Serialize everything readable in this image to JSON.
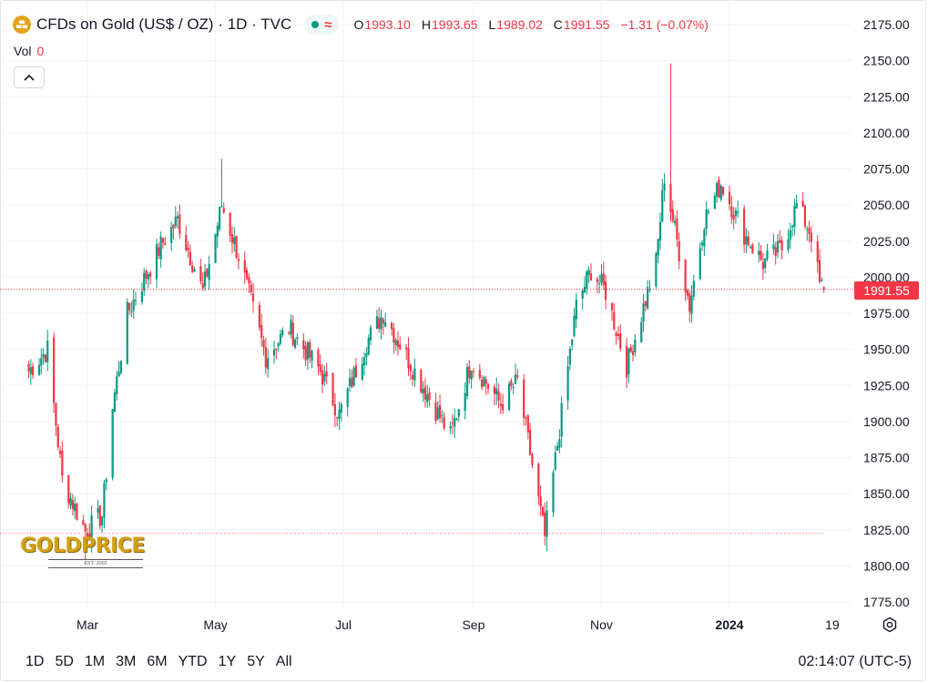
{
  "header": {
    "symbol_title": "CFDs on Gold (US$ / OZ) · 1D · TVC",
    "logo_icon": "gold-bars-icon",
    "status_icons": [
      "market-open-dot-icon",
      "delayed-data-wave-icon"
    ],
    "ohlc": [
      {
        "key": "O",
        "value": "1993.10"
      },
      {
        "key": "H",
        "value": "1993.65"
      },
      {
        "key": "L",
        "value": "1989.02"
      },
      {
        "key": "C",
        "value": "1991.55"
      }
    ],
    "change": "−1.31 (−0.07%)",
    "volume_label": "Vol",
    "volume_value": "0",
    "collapse_icon": "chevron-up-icon"
  },
  "last_price_badge": "1991.55",
  "watermark": {
    "brand": "GOLDPRICE",
    "est": "EST. 2002"
  },
  "time_ranges": [
    "1D",
    "5D",
    "1M",
    "3M",
    "6M",
    "YTD",
    "1Y",
    "5Y",
    "All"
  ],
  "clock": "02:14:07 (UTC-5)",
  "colors": {
    "up": "#089981",
    "down": "#f23645",
    "grid": "#f0f3fa",
    "text": "#131722",
    "logo": "#e3a31b"
  },
  "chart_data": {
    "type": "candlestick",
    "title": "CFDs on Gold (US$ / OZ) · 1D · TVC",
    "y_axis": {
      "range": [
        1768,
        2180
      ],
      "ticks": [
        "2175.00",
        "2150.00",
        "2125.00",
        "2100.00",
        "2075.00",
        "2050.00",
        "2025.00",
        "2000.00",
        "1975.00",
        "1950.00",
        "1925.00",
        "1900.00",
        "1875.00",
        "1850.00",
        "1825.00",
        "1800.00",
        "1775.00"
      ]
    },
    "x_axis": {
      "range": [
        "2023-01-31",
        "2024-02-21"
      ],
      "ticks": [
        {
          "label": "Mar",
          "date": "2023-03-01"
        },
        {
          "label": "May",
          "date": "2023-05-01"
        },
        {
          "label": "Jul",
          "date": "2023-07-01"
        },
        {
          "label": "Sep",
          "date": "2023-09-01"
        },
        {
          "label": "Nov",
          "date": "2023-11-01"
        },
        {
          "label": "2024",
          "date": "2024-01-01",
          "bold": true
        },
        {
          "label": "19",
          "date": "2024-02-19"
        }
      ]
    },
    "last_price": 1991.55,
    "reference_low_line": 1822.5,
    "anchors": [
      {
        "date": "2023-02-01",
        "close": 1935
      },
      {
        "date": "2023-02-10",
        "close": 1950
      },
      {
        "date": "2023-02-17",
        "close": 1860
      },
      {
        "date": "2023-02-28",
        "close": 1824
      },
      {
        "date": "2023-03-08",
        "close": 1835
      },
      {
        "date": "2023-03-13",
        "close": 1910
      },
      {
        "date": "2023-03-20",
        "close": 1975
      },
      {
        "date": "2023-04-05",
        "close": 2022
      },
      {
        "date": "2023-04-13",
        "close": 2040
      },
      {
        "date": "2023-04-25",
        "close": 1990
      },
      {
        "date": "2023-05-04",
        "close": 2050
      },
      {
        "date": "2023-05-12",
        "close": 2015
      },
      {
        "date": "2023-05-25",
        "close": 1945
      },
      {
        "date": "2023-06-05",
        "close": 1965
      },
      {
        "date": "2023-06-20",
        "close": 1935
      },
      {
        "date": "2023-06-29",
        "close": 1905
      },
      {
        "date": "2023-07-12",
        "close": 1955
      },
      {
        "date": "2023-07-20",
        "close": 1975
      },
      {
        "date": "2023-08-02",
        "close": 1940
      },
      {
        "date": "2023-08-21",
        "close": 1890
      },
      {
        "date": "2023-08-31",
        "close": 1942
      },
      {
        "date": "2023-09-14",
        "close": 1912
      },
      {
        "date": "2023-09-22",
        "close": 1928
      },
      {
        "date": "2023-10-05",
        "close": 1820
      },
      {
        "date": "2023-10-20",
        "close": 1980
      },
      {
        "date": "2023-10-27",
        "close": 2005
      },
      {
        "date": "2023-11-03",
        "close": 1990
      },
      {
        "date": "2023-11-13",
        "close": 1938
      },
      {
        "date": "2023-11-27",
        "close": 2010
      },
      {
        "date": "2023-12-01",
        "close": 2070
      },
      {
        "date": "2023-12-07",
        "close": 2025
      },
      {
        "date": "2023-12-13",
        "close": 1980
      },
      {
        "date": "2023-12-20",
        "close": 2040
      },
      {
        "date": "2023-12-28",
        "close": 2065
      },
      {
        "date": "2024-01-08",
        "close": 2030
      },
      {
        "date": "2024-01-17",
        "close": 2010
      },
      {
        "date": "2024-01-26",
        "close": 2020
      },
      {
        "date": "2024-02-02",
        "close": 2050
      },
      {
        "date": "2024-02-09",
        "close": 2030
      },
      {
        "date": "2024-02-13",
        "close": 1995
      },
      {
        "date": "2024-02-15",
        "close": 1991.55
      }
    ],
    "wick_extremes": [
      {
        "date": "2023-05-04",
        "high": 2082
      },
      {
        "date": "2023-12-04",
        "high": 2148
      },
      {
        "date": "2023-10-06",
        "low": 1810
      },
      {
        "date": "2023-02-28",
        "low": 1804
      }
    ]
  }
}
